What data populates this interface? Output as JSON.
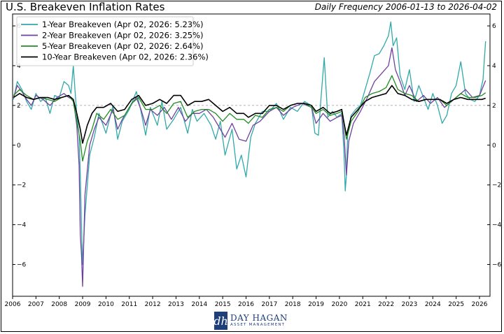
{
  "title": "U.S. Breakeven Inflation Rates",
  "subtitle": "Daily Frequency 2006-01-13 to 2026-04-02",
  "logo": {
    "name": "DAY HAGAN",
    "sub": "ASSET MANAGEMENT",
    "mark": "dh"
  },
  "chart_data": {
    "type": "line",
    "title": "U.S. Breakeven Inflation Rates",
    "xlabel": "",
    "ylabel": "",
    "xlim": [
      2006.0,
      2026.45
    ],
    "ylim": [
      -7.6,
      6.6
    ],
    "x_ticks": [
      "2006",
      "2007",
      "2008",
      "2009",
      "2010",
      "2011",
      "2012",
      "2013",
      "2014",
      "2015",
      "2016",
      "2017",
      "2018",
      "2019",
      "2020",
      "2021",
      "2022",
      "2023",
      "2024",
      "2025",
      "2026"
    ],
    "y_ticks_left": [
      "6",
      "4",
      "2",
      "0",
      "−2",
      "−4",
      "−6"
    ],
    "y_ticks_right": [
      "6",
      "4",
      "2",
      "0",
      "−2",
      "−4",
      "−6"
    ],
    "y_tick_values": [
      6,
      4,
      2,
      0,
      -2,
      -4,
      -6
    ],
    "reference_line": 2,
    "grid": false,
    "legend_position": "top-left",
    "series": [
      {
        "name": "1-Year Breakeven (Apr 02, 2026: 5.23%)",
        "color": "#31a9a9",
        "x": [
          2006.04,
          2006.2,
          2006.4,
          2006.6,
          2006.8,
          2007.0,
          2007.2,
          2007.4,
          2007.6,
          2007.8,
          2008.0,
          2008.2,
          2008.4,
          2008.5,
          2008.6,
          2008.75,
          2008.85,
          2008.9,
          2008.95,
          2009.0,
          2009.1,
          2009.3,
          2009.5,
          2009.7,
          2010.0,
          2010.3,
          2010.5,
          2010.7,
          2011.0,
          2011.3,
          2011.5,
          2011.7,
          2011.9,
          2012.2,
          2012.4,
          2012.6,
          2012.9,
          2013.2,
          2013.5,
          2013.7,
          2013.9,
          2014.2,
          2014.5,
          2014.7,
          2014.9,
          2015.1,
          2015.4,
          2015.6,
          2015.8,
          2016.0,
          2016.2,
          2016.4,
          2016.7,
          2017.0,
          2017.3,
          2017.6,
          2017.9,
          2018.2,
          2018.5,
          2018.8,
          2018.95,
          2019.1,
          2019.2,
          2019.35,
          2019.5,
          2019.7,
          2019.9,
          2020.1,
          2020.2,
          2020.25,
          2020.3,
          2020.35,
          2020.5,
          2020.7,
          2020.9,
          2021.1,
          2021.3,
          2021.5,
          2021.7,
          2021.9,
          2022.1,
          2022.2,
          2022.3,
          2022.45,
          2022.6,
          2022.8,
          2023.0,
          2023.2,
          2023.4,
          2023.6,
          2023.8,
          2024.0,
          2024.2,
          2024.4,
          2024.6,
          2024.8,
          2025.0,
          2025.2,
          2025.4,
          2025.6,
          2025.8,
          2026.0,
          2026.15,
          2026.26
        ],
        "values": [
          2.3,
          3.2,
          2.8,
          2.2,
          1.8,
          2.6,
          2.2,
          2.4,
          1.6,
          2.5,
          2.4,
          3.2,
          3.0,
          2.6,
          4.0,
          1.5,
          0.5,
          -1.5,
          -4.0,
          -6.0,
          -3.5,
          -0.5,
          0.4,
          1.6,
          0.6,
          2.0,
          0.3,
          1.2,
          1.8,
          2.7,
          1.7,
          0.5,
          1.9,
          1.0,
          2.2,
          0.8,
          1.3,
          1.9,
          0.6,
          1.8,
          1.2,
          1.6,
          1.0,
          0.3,
          1.2,
          -0.5,
          0.8,
          -1.2,
          -0.5,
          -1.6,
          0.4,
          1.1,
          1.7,
          1.7,
          2.1,
          1.3,
          1.9,
          1.7,
          2.2,
          2.0,
          0.6,
          0.5,
          2.2,
          4.4,
          1.4,
          1.7,
          1.4,
          1.6,
          -0.5,
          -2.3,
          -1.5,
          0.5,
          1.5,
          1.8,
          2.0,
          2.8,
          3.6,
          4.5,
          4.6,
          5.0,
          5.5,
          6.2,
          5.0,
          5.4,
          3.5,
          2.8,
          3.8,
          2.2,
          3.0,
          2.4,
          1.8,
          2.6,
          2.0,
          1.1,
          1.5,
          2.6,
          3.0,
          4.2,
          2.6,
          2.3,
          2.2,
          2.5,
          3.3,
          5.23
        ]
      },
      {
        "name": "2-Year Breakeven (Apr 02, 2026: 3.25%)",
        "color": "#7040a0",
        "x": [
          2006.04,
          2006.2,
          2006.4,
          2006.6,
          2006.8,
          2007.0,
          2007.3,
          2007.6,
          2007.9,
          2008.2,
          2008.4,
          2008.6,
          2008.75,
          2008.85,
          2008.9,
          2008.95,
          2009.0,
          2009.1,
          2009.3,
          2009.5,
          2009.7,
          2010.0,
          2010.3,
          2010.5,
          2010.7,
          2011.0,
          2011.3,
          2011.5,
          2011.7,
          2011.9,
          2012.2,
          2012.5,
          2012.8,
          2013.1,
          2013.4,
          2013.7,
          2014.0,
          2014.3,
          2014.6,
          2014.9,
          2015.1,
          2015.4,
          2015.7,
          2016.0,
          2016.3,
          2016.6,
          2017.0,
          2017.3,
          2017.6,
          2018.0,
          2018.4,
          2018.8,
          2019.0,
          2019.3,
          2019.6,
          2019.9,
          2020.1,
          2020.2,
          2020.3,
          2020.4,
          2020.6,
          2020.9,
          2021.2,
          2021.5,
          2021.8,
          2022.1,
          2022.25,
          2022.4,
          2022.6,
          2022.8,
          2023.0,
          2023.3,
          2023.6,
          2023.9,
          2024.2,
          2024.5,
          2024.8,
          2025.1,
          2025.4,
          2025.7,
          2026.0,
          2026.26
        ],
        "values": [
          2.4,
          3.0,
          2.7,
          2.3,
          2.0,
          2.5,
          2.3,
          2.0,
          2.4,
          2.6,
          2.4,
          2.3,
          1.0,
          -1.0,
          -4.5,
          -5.5,
          -7.1,
          -2.5,
          0.0,
          0.8,
          1.4,
          1.0,
          1.8,
          0.8,
          1.3,
          1.9,
          2.4,
          1.8,
          1.0,
          1.8,
          1.5,
          1.9,
          1.3,
          1.9,
          1.2,
          1.6,
          1.6,
          1.8,
          1.4,
          0.8,
          0.4,
          1.1,
          0.3,
          0.2,
          1.0,
          1.2,
          1.7,
          1.9,
          1.5,
          1.9,
          2.1,
          1.9,
          1.1,
          1.6,
          1.2,
          1.4,
          1.5,
          0.5,
          -1.5,
          0.2,
          1.1,
          1.7,
          2.4,
          3.2,
          3.6,
          4.0,
          4.9,
          3.8,
          3.2,
          2.5,
          3.0,
          2.2,
          2.5,
          2.1,
          2.4,
          1.9,
          2.2,
          2.5,
          2.8,
          2.4,
          2.5,
          3.25
        ]
      },
      {
        "name": "5-Year Breakeven (Apr 02, 2026: 2.64%)",
        "color": "#228b22",
        "x": [
          2006.04,
          2006.3,
          2006.6,
          2006.9,
          2007.2,
          2007.5,
          2007.8,
          2008.1,
          2008.4,
          2008.6,
          2008.75,
          2008.9,
          2009.0,
          2009.2,
          2009.4,
          2009.6,
          2009.9,
          2010.2,
          2010.5,
          2010.8,
          2011.1,
          2011.4,
          2011.7,
          2012.0,
          2012.3,
          2012.6,
          2012.9,
          2013.2,
          2013.5,
          2013.8,
          2014.1,
          2014.4,
          2014.7,
          2015.0,
          2015.3,
          2015.6,
          2015.9,
          2016.1,
          2016.4,
          2016.7,
          2017.0,
          2017.3,
          2017.6,
          2017.9,
          2018.2,
          2018.5,
          2018.8,
          2019.0,
          2019.3,
          2019.6,
          2019.9,
          2020.1,
          2020.2,
          2020.3,
          2020.5,
          2020.8,
          2021.1,
          2021.4,
          2021.7,
          2022.0,
          2022.25,
          2022.5,
          2022.8,
          2023.1,
          2023.4,
          2023.7,
          2024.0,
          2024.3,
          2024.6,
          2024.9,
          2025.2,
          2025.5,
          2025.8,
          2026.1,
          2026.26
        ],
        "values": [
          2.5,
          2.8,
          2.5,
          2.3,
          2.4,
          2.3,
          2.2,
          2.4,
          2.5,
          2.2,
          1.2,
          0.2,
          -0.8,
          0.2,
          0.8,
          1.6,
          1.3,
          1.8,
          1.3,
          1.5,
          2.1,
          2.4,
          1.8,
          1.8,
          2.0,
          1.6,
          2.1,
          2.2,
          1.4,
          1.7,
          1.8,
          1.8,
          1.6,
          1.2,
          1.6,
          1.3,
          1.3,
          1.1,
          1.5,
          1.4,
          1.8,
          1.9,
          1.7,
          2.0,
          2.1,
          2.1,
          1.9,
          1.6,
          1.8,
          1.5,
          1.6,
          1.7,
          1.0,
          0.3,
          1.2,
          1.7,
          2.4,
          2.6,
          2.7,
          2.9,
          3.5,
          2.8,
          2.6,
          2.5,
          2.2,
          2.3,
          2.3,
          2.3,
          2.0,
          2.3,
          2.6,
          2.4,
          2.4,
          2.5,
          2.64
        ]
      },
      {
        "name": "10-Year Breakeven (Apr 02, 2026: 2.36%)",
        "color": "#000000",
        "x": [
          2006.04,
          2006.3,
          2006.6,
          2006.9,
          2007.2,
          2007.5,
          2007.8,
          2008.1,
          2008.4,
          2008.6,
          2008.75,
          2008.9,
          2009.0,
          2009.2,
          2009.4,
          2009.6,
          2009.9,
          2010.2,
          2010.5,
          2010.8,
          2011.1,
          2011.4,
          2011.7,
          2012.0,
          2012.3,
          2012.6,
          2012.9,
          2013.2,
          2013.5,
          2013.8,
          2014.1,
          2014.4,
          2014.7,
          2015.0,
          2015.3,
          2015.6,
          2015.9,
          2016.1,
          2016.4,
          2016.7,
          2017.0,
          2017.3,
          2017.6,
          2017.9,
          2018.2,
          2018.5,
          2018.8,
          2019.0,
          2019.3,
          2019.6,
          2019.9,
          2020.1,
          2020.2,
          2020.3,
          2020.5,
          2020.8,
          2021.1,
          2021.4,
          2021.7,
          2022.0,
          2022.25,
          2022.5,
          2022.8,
          2023.1,
          2023.4,
          2023.7,
          2024.0,
          2024.3,
          2024.6,
          2024.9,
          2025.2,
          2025.5,
          2025.8,
          2026.1,
          2026.26
        ],
        "values": [
          2.4,
          2.6,
          2.4,
          2.3,
          2.4,
          2.4,
          2.3,
          2.4,
          2.5,
          2.3,
          1.6,
          0.8,
          0.1,
          1.0,
          1.6,
          1.9,
          1.9,
          2.1,
          1.7,
          1.8,
          2.3,
          2.5,
          2.0,
          2.1,
          2.3,
          2.1,
          2.5,
          2.5,
          2.0,
          2.2,
          2.2,
          2.3,
          2.0,
          1.7,
          1.9,
          1.6,
          1.6,
          1.4,
          1.6,
          1.6,
          2.0,
          2.0,
          1.8,
          2.0,
          2.1,
          2.1,
          2.0,
          1.7,
          1.9,
          1.6,
          1.7,
          1.8,
          1.1,
          0.5,
          1.4,
          1.8,
          2.2,
          2.4,
          2.5,
          2.6,
          3.0,
          2.6,
          2.5,
          2.3,
          2.2,
          2.3,
          2.3,
          2.3,
          2.1,
          2.3,
          2.4,
          2.3,
          2.3,
          2.3,
          2.36
        ]
      }
    ]
  }
}
